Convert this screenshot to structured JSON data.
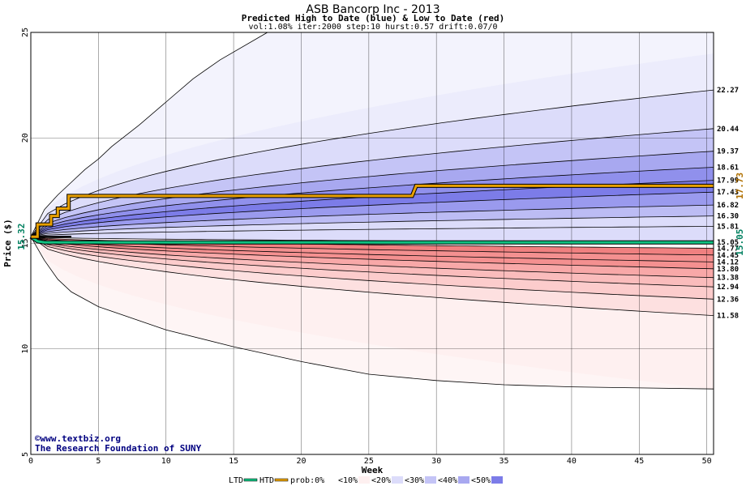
{
  "chart_data": {
    "type": "area",
    "title": "ASB Bancorp Inc - 2013",
    "subtitle": "Predicted High to Date (blue) &  Low to Date (red)",
    "params": "vol:1.08% iter:2000 step:10 hurst:0.57 drift:0.07/0",
    "xlabel": "Week",
    "ylabel": "Price ($)",
    "xlim": [
      0,
      50.5
    ],
    "ylim": [
      5,
      25
    ],
    "x_ticks": [
      0,
      5,
      10,
      15,
      20,
      25,
      30,
      35,
      40,
      45,
      50
    ],
    "y_ticks": [
      5,
      10,
      15,
      20,
      25
    ],
    "grid": true,
    "start_price": 15.32,
    "start_label": "15.32",
    "upper_percentiles": [
      {
        "label": "22.27",
        "end": 22.27,
        "curve": [
          15.32,
          16.9,
          17.6,
          18.1,
          18.5,
          18.9,
          19.3,
          19.65,
          20.0,
          20.3,
          20.6,
          20.85,
          21.1,
          21.35,
          21.55,
          21.75,
          22.27
        ]
      },
      {
        "label": "20.44",
        "end": 20.44
      },
      {
        "label": "19.37",
        "end": 19.37
      },
      {
        "label": "18.61",
        "end": 18.61
      },
      {
        "label": "17.99",
        "end": 17.99
      },
      {
        "label": "17.43",
        "end": 17.43
      },
      {
        "label": "16.82",
        "end": 16.82
      },
      {
        "label": "16.30",
        "end": 16.3
      },
      {
        "label": "15.81",
        "end": 15.81
      },
      {
        "label": "15.05",
        "end": 15.05
      }
    ],
    "lower_percentiles": [
      {
        "label": "14.77",
        "end": 14.77
      },
      {
        "label": "14.45",
        "end": 14.45
      },
      {
        "label": "14.12",
        "end": 14.12
      },
      {
        "label": "13.80",
        "end": 13.8
      },
      {
        "label": "13.38",
        "end": 13.38
      },
      {
        "label": "12.94",
        "end": 12.94
      },
      {
        "label": "12.36",
        "end": 12.36
      },
      {
        "label": "11.58",
        "end": 11.58
      }
    ],
    "outer_high": {
      "x": [
        0,
        1,
        2,
        3,
        4,
        5,
        6,
        8,
        10,
        12,
        14,
        17.5
      ],
      "y": [
        15.32,
        16.6,
        17.3,
        17.9,
        18.5,
        19.0,
        19.6,
        20.6,
        21.7,
        22.8,
        23.7,
        25.0
      ]
    },
    "outer_low": {
      "x": [
        0,
        1,
        2,
        3,
        5,
        10,
        15,
        20,
        25,
        30,
        35,
        40,
        45,
        50.5
      ],
      "y": [
        15.32,
        14.2,
        13.3,
        12.7,
        12.0,
        10.9,
        10.1,
        9.4,
        8.8,
        8.5,
        8.3,
        8.2,
        8.15,
        8.1
      ]
    },
    "bands": [
      {
        "upper": 24.0,
        "lower": 20.44,
        "color": "#ececfc"
      },
      {
        "upper": 22.27,
        "lower": 19.37,
        "color": "#dcdcfa"
      },
      {
        "upper": 20.44,
        "lower": 18.61,
        "color": "#c4c4f6"
      },
      {
        "upper": 19.37,
        "lower": 17.99,
        "color": "#a8a8f0"
      },
      {
        "upper": 18.61,
        "lower": 17.43,
        "color": "#9090ec"
      },
      {
        "upper": 17.99,
        "lower": 16.82,
        "color": "#7c7ce8"
      },
      {
        "upper": 17.43,
        "lower": 16.3,
        "color": "#9a9aee"
      },
      {
        "upper": 16.82,
        "lower": 15.81,
        "color": "#bcbcf4"
      },
      {
        "upper": 16.3,
        "lower": 15.05,
        "color": "#dcdcfa"
      },
      {
        "upper": 14.77,
        "lower": 14.12,
        "color": "#f08080"
      },
      {
        "upper": 14.45,
        "lower": 13.8,
        "color": "#f49090"
      },
      {
        "upper": 13.8,
        "lower": 13.38,
        "color": "#f8a8a8"
      },
      {
        "upper": 13.38,
        "lower": 12.94,
        "color": "#fabcbc"
      },
      {
        "upper": 12.94,
        "lower": 12.36,
        "color": "#fccccc"
      },
      {
        "upper": 12.36,
        "lower": 11.58,
        "color": "#fde0e0"
      },
      {
        "upper": 11.58,
        "lower": 8.1,
        "color": "#fef0f0"
      }
    ],
    "htd_line": {
      "name": "HTD",
      "color": "#e8a000",
      "x": [
        0,
        0.5,
        0.5,
        1.5,
        1.5,
        2.0,
        2.0,
        2.8,
        2.8,
        28.2,
        28.5,
        50.5
      ],
      "y": [
        15.32,
        15.32,
        15.9,
        15.9,
        16.3,
        16.3,
        16.65,
        16.65,
        17.25,
        17.25,
        17.73,
        17.73
      ],
      "end_label": "17.73"
    },
    "ltd_line": {
      "name": "LTD",
      "color": "#10c080",
      "x": [
        0,
        0.5,
        1.0,
        50.5
      ],
      "y": [
        15.32,
        15.1,
        15.05,
        15.05
      ],
      "end_label": "15.05"
    },
    "legend": [
      {
        "label": "LTD",
        "type": "line",
        "color": "#10c080"
      },
      {
        "label": "HTD",
        "type": "line",
        "color": "#e8a000"
      },
      {
        "label": "prob:0%",
        "type": "text"
      },
      {
        "label": "<10%",
        "type": "swatch",
        "color": "#fef0f0"
      },
      {
        "label": "<20%",
        "type": "swatch",
        "color": "#dcdcfa"
      },
      {
        "label": "<30%",
        "type": "swatch",
        "color": "#c4c4f6"
      },
      {
        "label": "<40%",
        "type": "swatch",
        "color": "#a8a8f0"
      },
      {
        "label": "<50%",
        "type": "swatch",
        "color": "#7c7ce8"
      }
    ]
  },
  "credits": [
    "©www.textbiz.org",
    "The Research Foundation of SUNY"
  ]
}
